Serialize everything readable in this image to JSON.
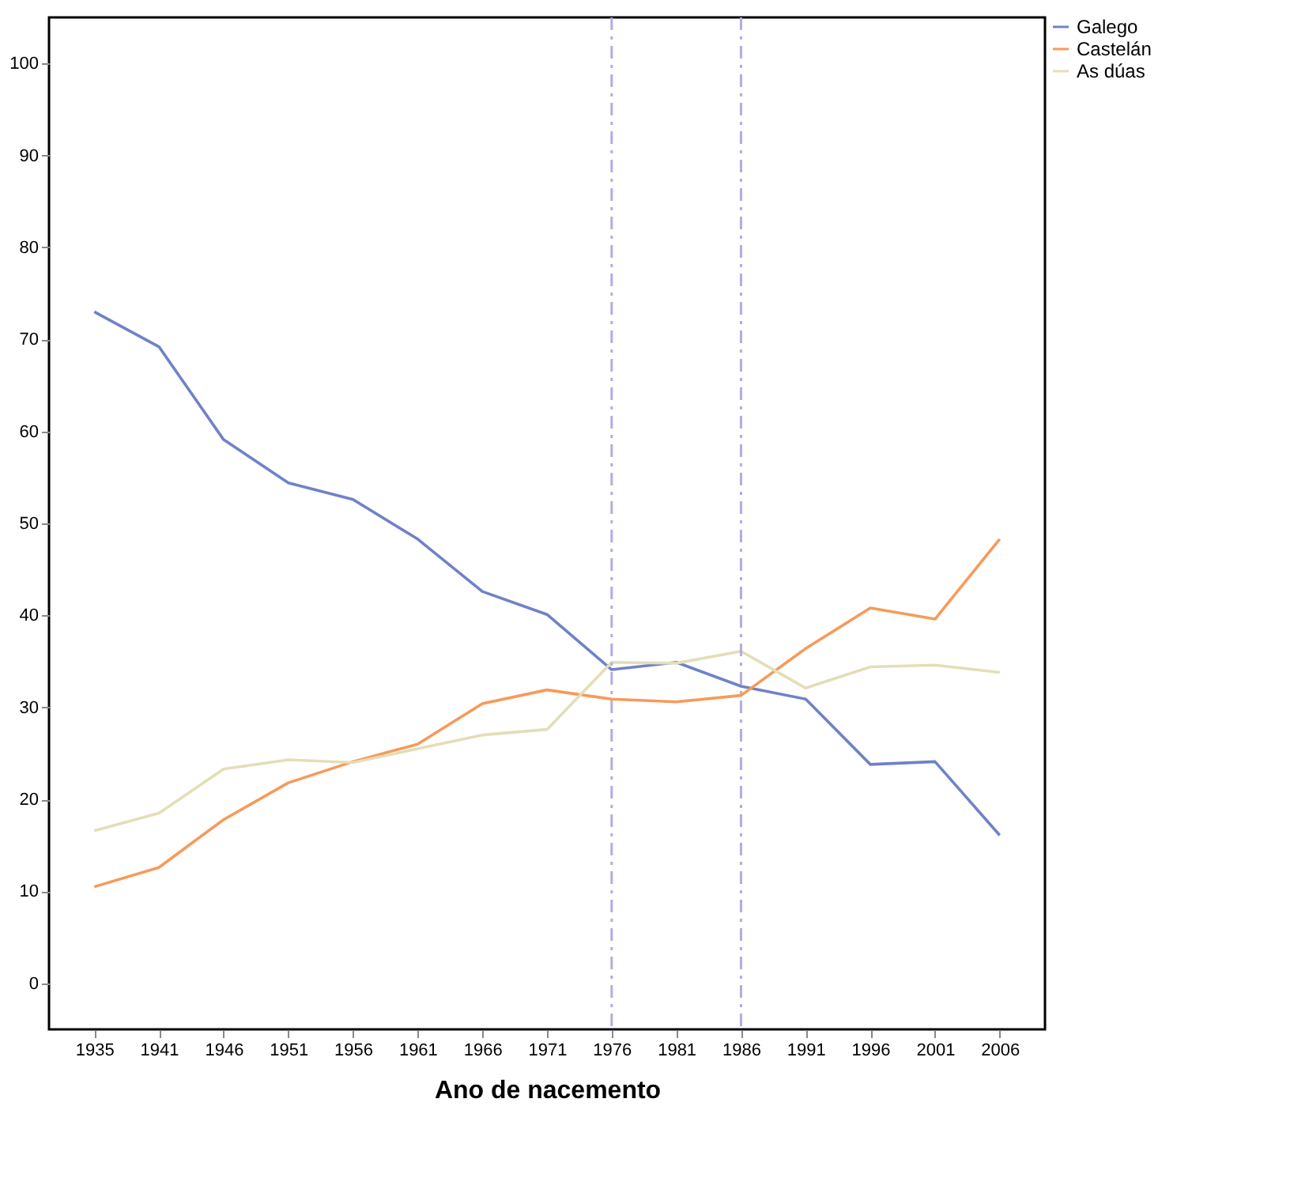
{
  "chart_data": {
    "type": "line",
    "xlabel": "Ano de nacemento",
    "categories": [
      "1935",
      "1941",
      "1946",
      "1951",
      "1956",
      "1961",
      "1966",
      "1971",
      "1976",
      "1981",
      "1986",
      "1991",
      "1996",
      "2001",
      "2006"
    ],
    "series": [
      {
        "name": "Galego",
        "color": "#6f82c8",
        "values": [
          73.0,
          69.2,
          59.1,
          54.4,
          52.6,
          48.3,
          42.6,
          40.1,
          34.1,
          34.9,
          32.3,
          30.9,
          23.8,
          24.1,
          16.1
        ]
      },
      {
        "name": "Castelán",
        "color": "#f79a5a",
        "values": [
          10.5,
          12.6,
          17.8,
          21.8,
          24.1,
          26.0,
          30.4,
          31.9,
          30.9,
          30.6,
          31.3,
          36.4,
          40.8,
          39.6,
          48.3
        ]
      },
      {
        "name": "As dúas",
        "color": "#e3deb7",
        "values": [
          16.6,
          18.5,
          23.3,
          24.3,
          24.0,
          25.5,
          27.0,
          27.6,
          34.9,
          34.8,
          36.1,
          32.1,
          34.4,
          34.6,
          33.8
        ]
      }
    ],
    "ylim": [
      -5,
      105
    ],
    "yticks": [
      0,
      10,
      20,
      30,
      40,
      50,
      60,
      70,
      80,
      90,
      100
    ],
    "ref_lines": [
      {
        "axis": "x",
        "value": "1976",
        "color": "#b8a9e0",
        "line_style": "dashdot"
      },
      {
        "axis": "x",
        "value": "1986",
        "color": "#b8a9e0",
        "line_style": "dashdot"
      }
    ],
    "grid": false,
    "legend": "top right",
    "marker": "none",
    "line_style": "solid"
  }
}
